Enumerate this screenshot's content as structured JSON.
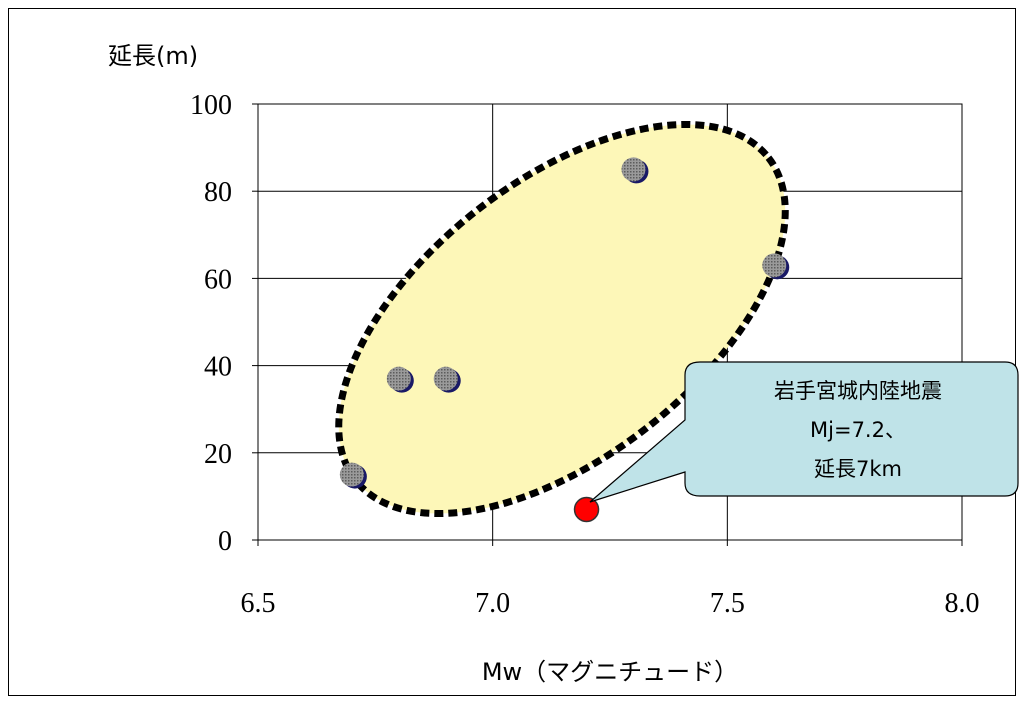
{
  "chart_data": {
    "type": "scatter",
    "title": "",
    "xlabel": "Mw（マグニチュード）",
    "ylabel": "延長(m)",
    "xlim": [
      6.5,
      8.0
    ],
    "ylim": [
      0,
      100
    ],
    "xticks": [
      "6.5",
      "7.0",
      "7.5",
      "8.0"
    ],
    "yticks": [
      "0",
      "20",
      "40",
      "60",
      "80",
      "100"
    ],
    "grid": true,
    "series": [
      {
        "color": "#8c8c8c",
        "points": [
          {
            "x": 6.7,
            "y": 15
          },
          {
            "x": 6.8,
            "y": 37
          },
          {
            "x": 6.9,
            "y": 37
          },
          {
            "x": 7.3,
            "y": 85
          },
          {
            "x": 7.6,
            "y": 63
          }
        ]
      },
      {
        "color": "#ff0000",
        "points": [
          {
            "x": 7.2,
            "y": 7
          }
        ]
      }
    ],
    "annotation": {
      "lines": [
        "岩手宮城内陸地震",
        "Mj=7.2、",
        "延長7km"
      ],
      "fill": "#bfe3e8"
    },
    "highlight_region": {
      "fill": "#fdf7b8",
      "stroke": "#000000"
    }
  }
}
